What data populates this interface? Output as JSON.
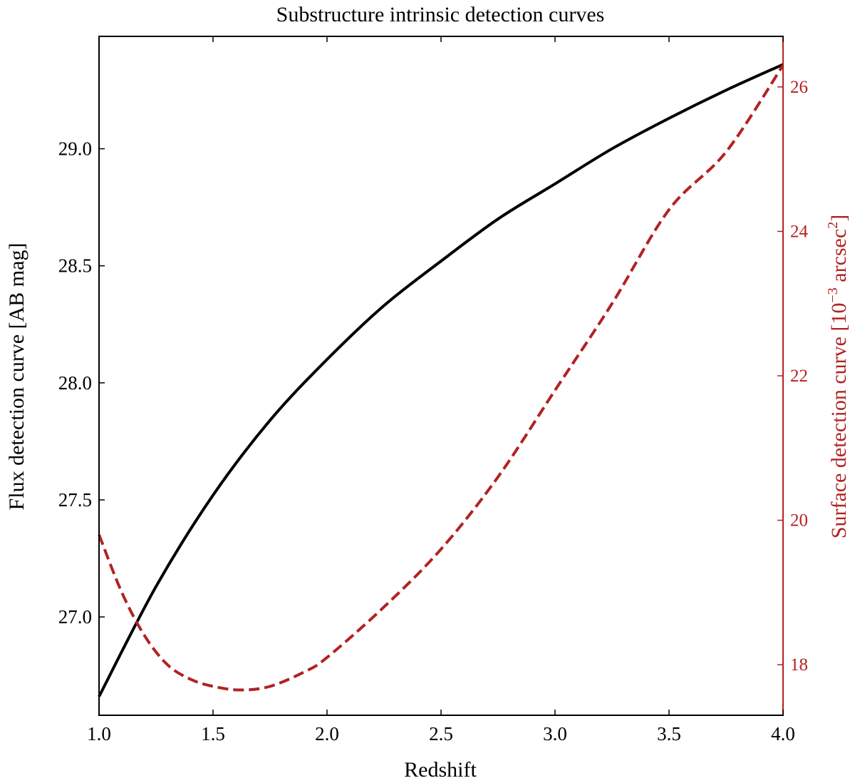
{
  "chart_data": {
    "type": "line",
    "title": "Substructure intrinsic detection curves",
    "xlabel": "Redshift",
    "ylabel_left": "Flux detection curve [AB mag]",
    "ylabel_right_prefix": "Surface detection curve [10",
    "ylabel_right_exp1": "−3",
    "ylabel_right_mid": " arcsec",
    "ylabel_right_exp2": "2",
    "ylabel_right_suffix": "]",
    "xlim": [
      1.0,
      4.0
    ],
    "ylim_left": [
      26.58,
      29.48
    ],
    "ylim_right": [
      17.3,
      26.7
    ],
    "x_ticks": [
      1.0,
      1.5,
      2.0,
      2.5,
      3.0,
      3.5,
      4.0
    ],
    "x_tick_labels": [
      "1.0",
      "1.5",
      "2.0",
      "2.5",
      "3.0",
      "3.5",
      "4.0"
    ],
    "y_left_ticks": [
      27.0,
      27.5,
      28.0,
      28.5,
      29.0
    ],
    "y_left_tick_labels": [
      "27.0",
      "27.5",
      "28.0",
      "28.5",
      "29.0"
    ],
    "y_right_ticks": [
      18,
      20,
      22,
      24,
      26
    ],
    "y_right_tick_labels": [
      "18",
      "20",
      "22",
      "24",
      "26"
    ],
    "grid": false,
    "colors": {
      "flux": "#000000",
      "surface": "#b22222"
    },
    "series": [
      {
        "axis": "left",
        "style": "solid",
        "x": [
          1.0,
          1.25,
          1.5,
          1.75,
          2.0,
          2.25,
          2.5,
          2.75,
          3.0,
          3.25,
          3.5,
          3.75,
          4.0
        ],
        "values": [
          26.66,
          27.13,
          27.52,
          27.84,
          28.1,
          28.33,
          28.52,
          28.7,
          28.85,
          29.0,
          29.13,
          29.25,
          29.36
        ]
      },
      {
        "axis": "right",
        "style": "dashed",
        "x": [
          1.0,
          1.1,
          1.2,
          1.3,
          1.4,
          1.5,
          1.62,
          1.75,
          1.9,
          2.0,
          2.25,
          2.5,
          2.75,
          3.0,
          3.25,
          3.5,
          3.75,
          4.0
        ],
        "values": [
          19.8,
          19.0,
          18.4,
          18.0,
          17.8,
          17.7,
          17.65,
          17.7,
          17.9,
          18.1,
          18.8,
          19.6,
          20.6,
          21.8,
          23.0,
          24.3,
          25.1,
          26.3
        ]
      }
    ]
  }
}
